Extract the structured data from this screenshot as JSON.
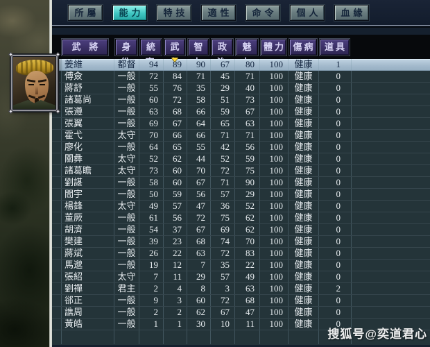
{
  "tab_bar": {
    "tabs": [
      {
        "id": "affiliation",
        "label": "所屬",
        "active": false
      },
      {
        "id": "ability",
        "label": "能力",
        "active": true
      },
      {
        "id": "skill",
        "label": "特技",
        "active": false
      },
      {
        "id": "aptitude",
        "label": "適性",
        "active": false
      },
      {
        "id": "order",
        "label": "命令",
        "active": false
      },
      {
        "id": "personal",
        "label": "個人",
        "active": false
      },
      {
        "id": "kinship",
        "label": "血緣",
        "active": false
      }
    ]
  },
  "portrait": {
    "icon": "officer-face-portrait",
    "of_row": "姜維"
  },
  "table": {
    "columns": [
      {
        "key": "name",
        "label": "武將"
      },
      {
        "key": "rank",
        "label": "身份"
      },
      {
        "key": "lead",
        "label": "統率"
      },
      {
        "key": "war",
        "label": "武力"
      },
      {
        "key": "int",
        "label": "智力"
      },
      {
        "key": "pol",
        "label": "政治"
      },
      {
        "key": "chr",
        "label": "魅力"
      },
      {
        "key": "hp",
        "label": "體力"
      },
      {
        "key": "health",
        "label": "傷病"
      },
      {
        "key": "item",
        "label": "道具"
      }
    ],
    "sorted_by": "war",
    "sort_indicator": "▼",
    "rows": [
      {
        "name": "姜維",
        "rank": "都督",
        "lead": 94,
        "war": 89,
        "int": 90,
        "pol": 67,
        "chr": 80,
        "hp": 100,
        "health": "健康",
        "item": 1,
        "selected": true
      },
      {
        "name": "傅僉",
        "rank": "一般",
        "lead": 72,
        "war": 84,
        "int": 71,
        "pol": 45,
        "chr": 71,
        "hp": 100,
        "health": "健康",
        "item": 0,
        "selected": false
      },
      {
        "name": "蔣舒",
        "rank": "一般",
        "lead": 55,
        "war": 76,
        "int": 35,
        "pol": 29,
        "chr": 40,
        "hp": 100,
        "health": "健康",
        "item": 0,
        "selected": false
      },
      {
        "name": "諸葛尚",
        "rank": "一般",
        "lead": 60,
        "war": 72,
        "int": 58,
        "pol": 51,
        "chr": 73,
        "hp": 100,
        "health": "健康",
        "item": 0,
        "selected": false
      },
      {
        "name": "張遵",
        "rank": "一般",
        "lead": 63,
        "war": 68,
        "int": 66,
        "pol": 59,
        "chr": 67,
        "hp": 100,
        "health": "健康",
        "item": 0,
        "selected": false
      },
      {
        "name": "張翼",
        "rank": "一般",
        "lead": 69,
        "war": 67,
        "int": 64,
        "pol": 65,
        "chr": 63,
        "hp": 100,
        "health": "健康",
        "item": 0,
        "selected": false
      },
      {
        "name": "霍弋",
        "rank": "太守",
        "lead": 70,
        "war": 66,
        "int": 66,
        "pol": 71,
        "chr": 71,
        "hp": 100,
        "health": "健康",
        "item": 0,
        "selected": false
      },
      {
        "name": "廖化",
        "rank": "一般",
        "lead": 64,
        "war": 65,
        "int": 55,
        "pol": 42,
        "chr": 56,
        "hp": 100,
        "health": "健康",
        "item": 0,
        "selected": false
      },
      {
        "name": "關彝",
        "rank": "太守",
        "lead": 52,
        "war": 62,
        "int": 44,
        "pol": 52,
        "chr": 59,
        "hp": 100,
        "health": "健康",
        "item": 0,
        "selected": false
      },
      {
        "name": "諸葛瞻",
        "rank": "太守",
        "lead": 73,
        "war": 60,
        "int": 70,
        "pol": 72,
        "chr": 75,
        "hp": 100,
        "health": "健康",
        "item": 0,
        "selected": false
      },
      {
        "name": "劉諶",
        "rank": "一般",
        "lead": 58,
        "war": 60,
        "int": 67,
        "pol": 71,
        "chr": 90,
        "hp": 100,
        "health": "健康",
        "item": 0,
        "selected": false
      },
      {
        "name": "閻宇",
        "rank": "一般",
        "lead": 50,
        "war": 59,
        "int": 56,
        "pol": 57,
        "chr": 29,
        "hp": 100,
        "health": "健康",
        "item": 0,
        "selected": false
      },
      {
        "name": "楊鋒",
        "rank": "太守",
        "lead": 49,
        "war": 57,
        "int": 47,
        "pol": 36,
        "chr": 52,
        "hp": 100,
        "health": "健康",
        "item": 0,
        "selected": false
      },
      {
        "name": "董厥",
        "rank": "一般",
        "lead": 61,
        "war": 56,
        "int": 72,
        "pol": 75,
        "chr": 62,
        "hp": 100,
        "health": "健康",
        "item": 0,
        "selected": false
      },
      {
        "name": "胡濟",
        "rank": "一般",
        "lead": 54,
        "war": 37,
        "int": 67,
        "pol": 69,
        "chr": 62,
        "hp": 100,
        "health": "健康",
        "item": 0,
        "selected": false
      },
      {
        "name": "樊建",
        "rank": "一般",
        "lead": 39,
        "war": 23,
        "int": 68,
        "pol": 74,
        "chr": 70,
        "hp": 100,
        "health": "健康",
        "item": 0,
        "selected": false
      },
      {
        "name": "蔣斌",
        "rank": "一般",
        "lead": 26,
        "war": 22,
        "int": 63,
        "pol": 72,
        "chr": 83,
        "hp": 100,
        "health": "健康",
        "item": 0,
        "selected": false
      },
      {
        "name": "馬邈",
        "rank": "一般",
        "lead": 19,
        "war": 12,
        "int": 7,
        "pol": 35,
        "chr": 22,
        "hp": 100,
        "health": "健康",
        "item": 0,
        "selected": false
      },
      {
        "name": "張紹",
        "rank": "太守",
        "lead": 7,
        "war": 11,
        "int": 29,
        "pol": 57,
        "chr": 49,
        "hp": 100,
        "health": "健康",
        "item": 0,
        "selected": false
      },
      {
        "name": "劉禪",
        "rank": "君主",
        "lead": 2,
        "war": 4,
        "int": 8,
        "pol": 3,
        "chr": 63,
        "hp": 100,
        "health": "健康",
        "item": 2,
        "selected": false
      },
      {
        "name": "郤正",
        "rank": "一般",
        "lead": 9,
        "war": 3,
        "int": 60,
        "pol": 72,
        "chr": 68,
        "hp": 100,
        "health": "健康",
        "item": 0,
        "selected": false
      },
      {
        "name": "譙周",
        "rank": "一般",
        "lead": 2,
        "war": 2,
        "int": 62,
        "pol": 67,
        "chr": 47,
        "hp": 100,
        "health": "健康",
        "item": 0,
        "selected": false
      },
      {
        "name": "黃皓",
        "rank": "一般",
        "lead": 1,
        "war": 1,
        "int": 30,
        "pol": 10,
        "chr": 11,
        "hp": 100,
        "health": "健康",
        "item": 0,
        "selected": false
      }
    ]
  },
  "watermark": "搜狐号@奕道君心",
  "colors": {
    "tab_active": "#3fc6c2",
    "header_button": "#3a2f64",
    "selected_row": "#a9bfd2",
    "panel_bg": "#243439",
    "top_bar_bg": "#141e2e",
    "sort_arrow": "#ffd83a",
    "row_text": "#e7ecef"
  }
}
